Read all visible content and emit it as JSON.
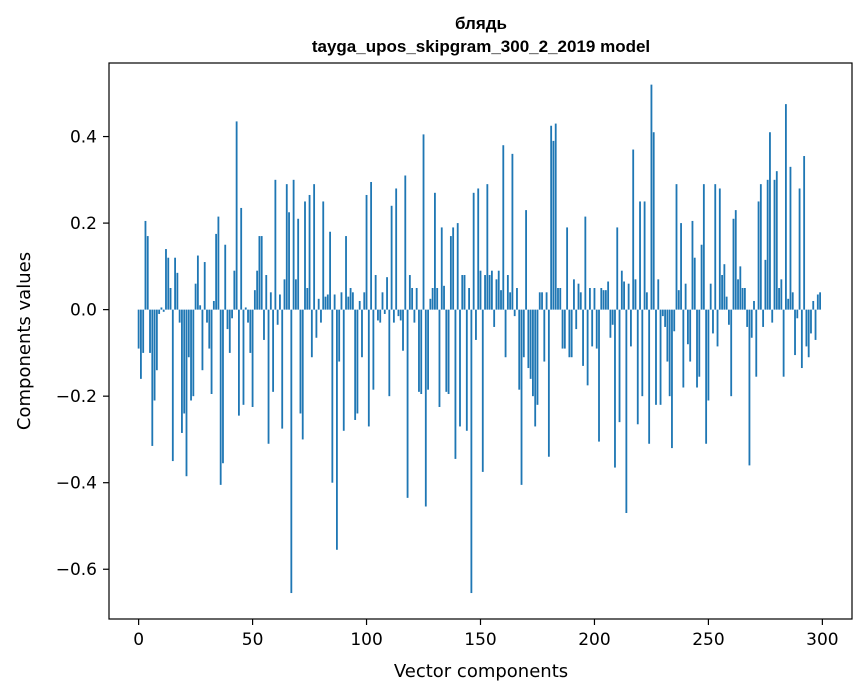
{
  "chart_data": {
    "type": "bar",
    "title_line1": "блядь",
    "title_line2": "tayga_upos_skipgram_300_2_2019 model",
    "xlabel": "Vector components",
    "ylabel": "Components values",
    "xlim": [
      -13,
      313
    ],
    "ylim": [
      -0.715,
      0.57
    ],
    "x_ticks": [
      {
        "value": 0,
        "label": "0"
      },
      {
        "value": 50,
        "label": "50"
      },
      {
        "value": 100,
        "label": "100"
      },
      {
        "value": 150,
        "label": "150"
      },
      {
        "value": 200,
        "label": "200"
      },
      {
        "value": 250,
        "label": "250"
      },
      {
        "value": 300,
        "label": "300"
      }
    ],
    "y_ticks": [
      {
        "value": 0.4,
        "label": "0.4"
      },
      {
        "value": 0.2,
        "label": "0.2"
      },
      {
        "value": 0.0,
        "label": "0.0"
      },
      {
        "value": -0.2,
        "label": "−0.2"
      },
      {
        "value": -0.4,
        "label": "−0.4"
      },
      {
        "value": -0.6,
        "label": "−0.6"
      }
    ],
    "bar_color": "#1f77b4",
    "values": [
      -0.09,
      -0.16,
      -0.1,
      0.205,
      0.17,
      -0.1,
      -0.315,
      -0.21,
      -0.14,
      -0.01,
      0.005,
      -0.005,
      0.14,
      0.12,
      0.05,
      -0.35,
      0.12,
      0.085,
      -0.03,
      -0.285,
      -0.24,
      -0.385,
      -0.11,
      -0.21,
      -0.2,
      0.06,
      0.125,
      0.01,
      -0.14,
      0.11,
      -0.03,
      -0.09,
      -0.195,
      0.02,
      0.175,
      0.215,
      -0.405,
      -0.355,
      0.15,
      -0.045,
      -0.1,
      -0.02,
      0.09,
      0.435,
      -0.245,
      0.235,
      -0.22,
      0.005,
      -0.03,
      -0.1,
      -0.225,
      0.045,
      0.09,
      0.17,
      0.17,
      -0.07,
      0.08,
      -0.31,
      0.04,
      -0.19,
      0.3,
      -0.035,
      0.035,
      -0.275,
      0.07,
      0.29,
      0.225,
      -0.655,
      0.3,
      0.07,
      0.21,
      -0.24,
      -0.3,
      0.25,
      0.05,
      0.265,
      -0.11,
      0.29,
      -0.065,
      0.025,
      -0.03,
      0.25,
      0.03,
      0.035,
      0.18,
      -0.4,
      0.035,
      -0.555,
      -0.12,
      0.04,
      -0.28,
      0.17,
      0.03,
      0.05,
      0.04,
      -0.255,
      -0.24,
      0.02,
      -0.11,
      0.04,
      0.265,
      -0.27,
      0.295,
      -0.185,
      0.08,
      -0.025,
      -0.03,
      0.04,
      -0.01,
      0.075,
      -0.2,
      0.24,
      -0.03,
      0.28,
      -0.015,
      -0.025,
      -0.095,
      0.31,
      -0.435,
      0.08,
      0.05,
      -0.03,
      0.05,
      -0.19,
      -0.195,
      0.405,
      -0.455,
      -0.185,
      0.025,
      0.05,
      0.27,
      0.05,
      -0.225,
      0.19,
      0.055,
      -0.19,
      -0.195,
      0.17,
      0.19,
      -0.345,
      0.2,
      -0.27,
      0.08,
      0.08,
      -0.28,
      0.05,
      -0.655,
      0.27,
      -0.07,
      0.28,
      0.09,
      -0.375,
      0.08,
      0.29,
      0.08,
      0.09,
      -0.04,
      0.07,
      0.09,
      0.045,
      0.38,
      -0.11,
      0.08,
      0.04,
      0.36,
      -0.015,
      0.05,
      -0.185,
      -0.405,
      -0.11,
      0.23,
      -0.135,
      -0.16,
      -0.2,
      -0.27,
      -0.22,
      0.04,
      0.04,
      -0.12,
      0.04,
      -0.34,
      0.425,
      0.39,
      0.43,
      0.05,
      0.05,
      -0.09,
      -0.09,
      0.19,
      -0.11,
      -0.11,
      0.07,
      -0.045,
      0.06,
      0.04,
      -0.13,
      0.215,
      -0.175,
      0.05,
      -0.085,
      0.05,
      -0.09,
      -0.305,
      0.05,
      0.045,
      0.045,
      0.065,
      -0.065,
      -0.035,
      -0.365,
      0.19,
      -0.26,
      0.09,
      0.065,
      -0.47,
      0.06,
      -0.085,
      0.37,
      0.07,
      -0.265,
      0.25,
      -0.2,
      0.25,
      0.04,
      -0.31,
      0.52,
      0.41,
      -0.22,
      0.07,
      -0.22,
      -0.015,
      -0.04,
      -0.12,
      -0.2,
      -0.32,
      -0.05,
      0.29,
      0.045,
      0.2,
      -0.18,
      0.06,
      -0.08,
      -0.12,
      0.205,
      0.12,
      -0.18,
      -0.155,
      0.15,
      0.29,
      -0.31,
      -0.21,
      0.06,
      -0.055,
      0.29,
      -0.085,
      0.28,
      0.08,
      0.105,
      0.03,
      -0.035,
      -0.2,
      0.21,
      0.23,
      0.07,
      0.1,
      0.05,
      0.05,
      -0.04,
      -0.36,
      -0.065,
      0.02,
      -0.155,
      0.25,
      0.29,
      -0.04,
      0.115,
      0.3,
      0.41,
      -0.03,
      0.3,
      0.32,
      0.05,
      0.07,
      -0.155,
      0.475,
      0.025,
      0.33,
      0.04,
      -0.105,
      -0.02,
      0.28,
      -0.135,
      0.355,
      -0.085,
      -0.11,
      -0.055,
      0.02,
      -0.07,
      0.035,
      0.04
    ]
  }
}
